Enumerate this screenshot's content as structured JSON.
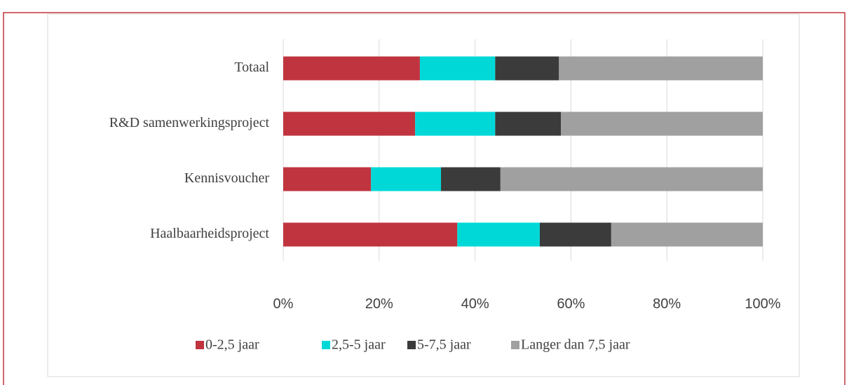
{
  "chart_data": {
    "type": "stacked_bar_horizontal",
    "categories": [
      "Totaal",
      "R&D samenwerkingsproject",
      "Kennisvoucher",
      "Haalbaarheidsproject"
    ],
    "series": [
      {
        "name": "0-2,5 jaar",
        "color": "#c0343f",
        "values": [
          28.5,
          27.5,
          18.3,
          36.3
        ]
      },
      {
        "name": "2,5-5 jaar",
        "color": "#00d8d8",
        "values": [
          15.7,
          16.7,
          14.6,
          17.2
        ]
      },
      {
        "name": "5-7,5 jaar",
        "color": "#3b3b3b",
        "values": [
          13.3,
          13.7,
          12.4,
          14.9
        ]
      },
      {
        "name": "Langer dan 7,5 jaar",
        "color": "#a0a0a0",
        "values": [
          42.5,
          42.1,
          54.7,
          31.6
        ]
      }
    ],
    "xlim": [
      0,
      100
    ],
    "xticks": [
      {
        "value": 0,
        "label": "0%"
      },
      {
        "value": 20,
        "label": "20%"
      },
      {
        "value": 40,
        "label": "40%"
      },
      {
        "value": 60,
        "label": "60%"
      },
      {
        "value": 80,
        "label": "80%"
      },
      {
        "value": 100,
        "label": "100%"
      }
    ],
    "grid": true,
    "legend": "bottom"
  }
}
